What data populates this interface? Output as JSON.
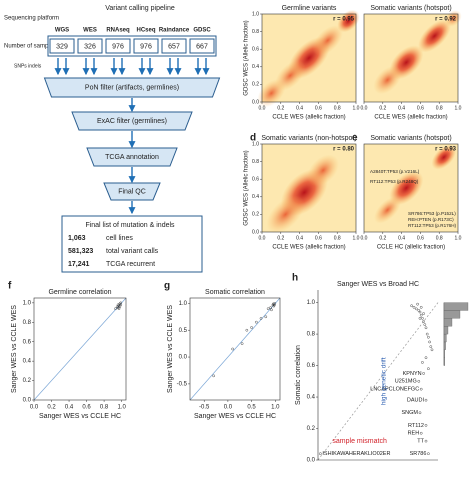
{
  "pipeline": {
    "title": "Variant calling pipeline",
    "row_labels": [
      "Sequencing platform",
      "Number of samples",
      "SNPs indels"
    ],
    "platforms": [
      "WGS",
      "WES",
      "RNAseq",
      "HCseq",
      "Raindance",
      "GDSC"
    ],
    "samples": [
      329,
      326,
      976,
      976,
      657,
      667
    ],
    "steps": [
      "PoN filter (artifacts, germlines)",
      "ExAC filter (germlines)",
      "TCGA annotation",
      "Final QC"
    ],
    "final": {
      "title": "Final list of mutation & indels",
      "rows": [
        {
          "count": "1,063",
          "label": "cell lines"
        },
        {
          "count": "581,323",
          "label": "total variant calls"
        },
        {
          "count": "17,241",
          "label": "TCGA recurrent"
        }
      ]
    }
  },
  "density": {
    "ticks": [
      {
        "value": 0,
        "label": "0.0"
      },
      {
        "value": 0.2,
        "label": "0.2"
      },
      {
        "value": 0.4,
        "label": "0.4"
      },
      {
        "value": 0.6,
        "label": "0.6"
      },
      {
        "value": 0.8,
        "label": "0.8"
      },
      {
        "value": 1,
        "label": "1.0"
      }
    ],
    "ylabel": "GDSC WES (Allelic fraction)",
    "panels": [
      {
        "title": "Germline variants",
        "r": "r = 0.95",
        "xlabel": "CCLE WES (allelic fraction)"
      },
      {
        "title": "Somatic variants (hotspot)",
        "r": "r = 0.92",
        "xlabel": "CCLE WES (allelic fraction)"
      },
      {
        "letter": "d",
        "title": "Somatic variants (non-hotspot)",
        "r": "r = 0.80",
        "xlabel": "CCLE WES (allelic fraction)"
      },
      {
        "letter": "e",
        "title": "Somatic variants (hotspot)",
        "r": "r = 0.93",
        "xlabel": "CCLE HC (allelic fraction)",
        "annotations": [
          "A2840T:TP53 (p.V216L)",
          "RT112:TP53 (p.R248Q)",
          "SR786:TP53 (p.P152L)",
          "REH:PTEN (p.R173C)",
          "RT112:TP53 (p.R176H)"
        ]
      }
    ]
  },
  "scatter": {
    "f": {
      "letter": "f",
      "title": "Germline correlation",
      "xlabel": "Sanger WES vs CCLE HC",
      "ylabel": "Sanger WES vs CCLE WES",
      "xlim": [
        0,
        1.05
      ],
      "ylim": [
        0,
        1.05
      ],
      "xticks": [
        {
          "value": 0,
          "label": "0.0"
        },
        {
          "value": 0.2,
          "label": "0.2"
        },
        {
          "value": 0.4,
          "label": "0.4"
        },
        {
          "value": 0.6,
          "label": "0.6"
        },
        {
          "value": 0.8,
          "label": "0.8"
        },
        {
          "value": 1,
          "label": "1.0"
        }
      ],
      "yticks": [
        {
          "value": 0,
          "label": "0.0"
        },
        {
          "value": 0.2,
          "label": "0.2"
        },
        {
          "value": 0.4,
          "label": "0.4"
        },
        {
          "value": 0.6,
          "label": "0.6"
        },
        {
          "value": 0.8,
          "label": "0.8"
        },
        {
          "value": 1,
          "label": "1.0"
        }
      ],
      "x": [
        0.97,
        0.98,
        0.99,
        0.96,
        0.95,
        0.99,
        0.97,
        0.93,
        0.98,
        0.96
      ],
      "y": [
        0.97,
        0.99,
        0.98,
        0.95,
        0.96,
        1.0,
        0.94,
        0.94,
        0.96,
        0.98
      ]
    },
    "g": {
      "letter": "g",
      "title": "Somatic correlation",
      "xlabel": "Sanger WES vs CCLE HC",
      "ylabel": "Sanger WES vs CCLE WES",
      "xlim": [
        -0.8,
        1.1
      ],
      "ylim": [
        -0.8,
        1.1
      ],
      "xticks": [
        -0.5,
        {
          "value": 0,
          "label": "0.0"
        },
        0.5,
        {
          "value": 1,
          "label": "1.0"
        }
      ],
      "yticks": [
        -0.5,
        {
          "value": 0,
          "label": "0.0"
        },
        0.5,
        {
          "value": 1,
          "label": "1.0"
        }
      ],
      "x": [
        0.1,
        -0.3,
        0.3,
        0.6,
        0.5,
        0.8,
        0.85,
        0.9,
        0.95,
        0.97,
        0.99,
        0.92,
        0.7,
        0.4,
        0.96,
        0.98
      ],
      "y": [
        0.15,
        -0.35,
        0.25,
        0.65,
        0.55,
        0.75,
        0.9,
        0.92,
        0.97,
        0.95,
        1.0,
        0.88,
        0.72,
        0.5,
        0.99,
        0.97
      ]
    },
    "h": {
      "letter": "h",
      "title": "Sanger WES vs Broad HC",
      "ylabel": "Somatic correlation",
      "xlim": [
        0,
        1
      ],
      "ylim": [
        0,
        1.08
      ],
      "yticks": [
        {
          "value": 0,
          "label": "0.0"
        },
        {
          "value": 0.2,
          "label": "0.2"
        },
        {
          "value": 0.4,
          "label": "0.4"
        },
        {
          "value": 0.6,
          "label": "0.6"
        },
        {
          "value": 0.8,
          "label": "0.8"
        },
        {
          "value": 1,
          "label": "1.0"
        }
      ],
      "x": [
        0.78,
        0.8,
        0.82,
        0.84,
        0.85,
        0.86,
        0.87,
        0.88,
        0.89,
        0.9,
        0.91,
        0.92,
        0.93,
        0.94,
        0.95,
        0.83,
        0.86,
        0.88,
        0.9,
        0.87,
        0.85,
        0.92
      ],
      "y": [
        0.98,
        0.97,
        0.96,
        0.95,
        0.94,
        0.92,
        0.9,
        0.88,
        0.86,
        0.84,
        0.8,
        0.78,
        0.75,
        0.72,
        0.7,
        0.99,
        0.97,
        0.93,
        0.65,
        0.62,
        0.9,
        0.58
      ],
      "labeled_points": [
        {
          "name": "KPNYN",
          "x": 0.88,
          "y": 0.55
        },
        {
          "name": "U251MG",
          "x": 0.84,
          "y": 0.5
        },
        {
          "name": "LNCAPCLONEFGC",
          "x": 0.86,
          "y": 0.45
        },
        {
          "name": "DAUDI",
          "x": 0.9,
          "y": 0.38
        },
        {
          "name": "SNGM",
          "x": 0.85,
          "y": 0.3
        },
        {
          "name": "RT112",
          "x": 0.9,
          "y": 0.22
        },
        {
          "name": "REH",
          "x": 0.86,
          "y": 0.17
        },
        {
          "name": "TT",
          "x": 0.9,
          "y": 0.12
        },
        {
          "name": "SR786",
          "x": 0.92,
          "y": 0.04
        },
        {
          "name": "ISHIKAWAHERAKLIO02ER",
          "x": 0.02,
          "y": 0.04
        }
      ],
      "annotations": {
        "drift": "high genetic drift",
        "mismatch": "sample mismatch"
      },
      "hist": {
        "bins": [
          0.6,
          0.65,
          0.7,
          0.75,
          0.8,
          0.85,
          0.9,
          0.95,
          1.0
        ],
        "counts": [
          1,
          1,
          2,
          3,
          5,
          10,
          20,
          30
        ]
      }
    }
  }
}
